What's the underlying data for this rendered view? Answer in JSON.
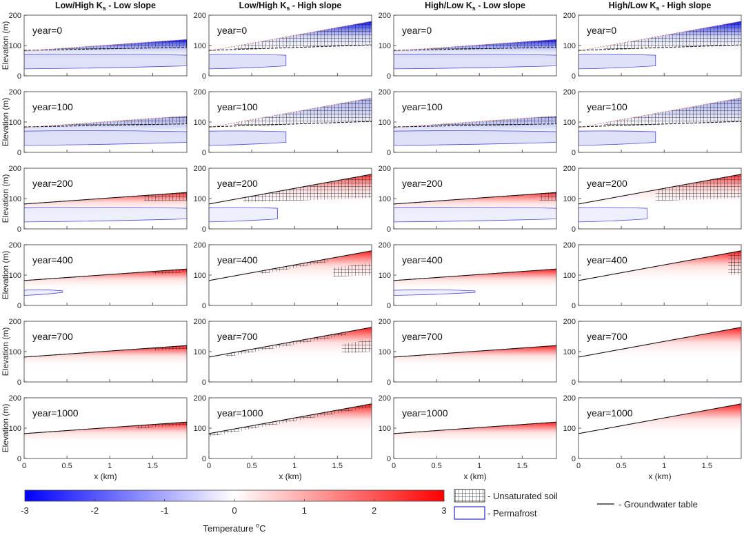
{
  "chart_data": {
    "type": "heatmap",
    "title": "",
    "columns": [
      {
        "title_prefix": "Low/High K",
        "title_sub": "s",
        "title_suffix": " - Low slope",
        "surface_elev_start": 82,
        "surface_elev_end": 120,
        "high_slope": false,
        "low_over_high": true
      },
      {
        "title_prefix": "Low/High K",
        "title_sub": "s",
        "title_suffix": " - High slope",
        "surface_elev_start": 82,
        "surface_elev_end": 180,
        "high_slope": true,
        "low_over_high": true
      },
      {
        "title_prefix": "High/Low K",
        "title_sub": "s",
        "title_suffix": " - Low slope",
        "surface_elev_start": 82,
        "surface_elev_end": 120,
        "high_slope": false,
        "low_over_high": false
      },
      {
        "title_prefix": "High/Low K",
        "title_sub": "s",
        "title_suffix": " - High slope",
        "surface_elev_start": 82,
        "surface_elev_end": 180,
        "high_slope": true,
        "low_over_high": false
      }
    ],
    "rows": [
      {
        "year_label": "year=0",
        "year": 0
      },
      {
        "year_label": "year=100",
        "year": 100
      },
      {
        "year_label": "year=200",
        "year": 200
      },
      {
        "year_label": "year=400",
        "year": 400
      },
      {
        "year_label": "year=700",
        "year": 700
      },
      {
        "year_label": "year=1000",
        "year": 1000
      }
    ],
    "xlabel": "x (km)",
    "ylabel": "Elevation (m)",
    "xlim": [
      0,
      1.9
    ],
    "ylim": [
      0,
      200
    ],
    "x_ticks": [
      0,
      0.5,
      1,
      1.5
    ],
    "x_tick_labels": [
      "0",
      "0.5",
      "1",
      "1.5"
    ],
    "y_ticks": [
      0,
      100,
      200
    ],
    "y_tick_labels": [
      "0",
      "100",
      "200"
    ],
    "colorbar": {
      "label_prefix": "Temperature ",
      "label_sup": "o",
      "label_suffix": "C",
      "min": -3,
      "max": 3,
      "ticks": [
        -3,
        -2,
        -1,
        0,
        1,
        2,
        3
      ],
      "tick_labels": [
        "-3",
        "-2",
        "-1",
        "0",
        "1",
        "2",
        "3"
      ],
      "cold_color": "#0000ff",
      "neutral_color": "#ffffff",
      "warm_color": "#ff0000"
    },
    "legend": {
      "unsaturated": "- Unsaturated soil",
      "permafrost": "- Permafrost",
      "groundwater": "- Groundwater table"
    }
  }
}
